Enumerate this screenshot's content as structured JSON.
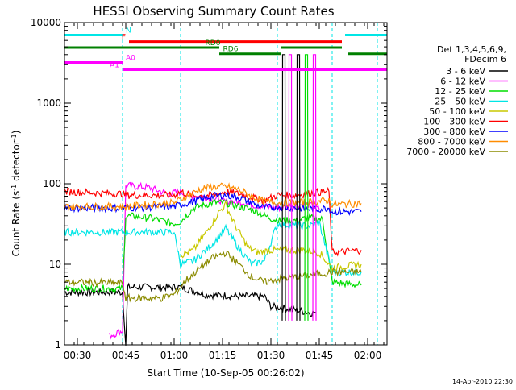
{
  "chart_data": {
    "type": "line",
    "title": "HESSI Observing Summary Count Rates",
    "xlabel": "Start Time (10-Sep-05 00:26:02)",
    "ylabel": "Count Rate (s⁻¹ detector⁻¹)",
    "ylabel_main": "Count Rate (s",
    "ylabel_sup1": "-1",
    "ylabel_mid": " detector",
    "ylabel_sup2": "-1",
    "ylabel_end": ")",
    "x_unit": "minutes after 00:26:02",
    "xlim": [
      0,
      100
    ],
    "ylim": [
      1,
      10000
    ],
    "yscale": "log",
    "grid": false,
    "x_ticks": [
      {
        "x": 4,
        "label": "00:30"
      },
      {
        "x": 19,
        "label": "00:45"
      },
      {
        "x": 34,
        "label": "01:00"
      },
      {
        "x": 49,
        "label": "01:15"
      },
      {
        "x": 64,
        "label": "01:30"
      },
      {
        "x": 79,
        "label": "01:45"
      },
      {
        "x": 94,
        "label": "02:00"
      }
    ],
    "y_ticks": [
      {
        "y": 1,
        "label": "1"
      },
      {
        "y": 10,
        "label": "10"
      },
      {
        "y": 100,
        "label": "100"
      },
      {
        "y": 1000,
        "label": "1000"
      },
      {
        "y": 10000,
        "label": "10000"
      }
    ],
    "legend": {
      "placement": "right",
      "title_line1": "Det 1,3,4,5,6,9,",
      "title_line2": "FDecim 6",
      "entries": [
        {
          "label": "3 - 6 keV",
          "color": "#000000"
        },
        {
          "label": "6 - 12 keV",
          "color": "#ff00ff"
        },
        {
          "label": "12 - 25 keV",
          "color": "#00dd00"
        },
        {
          "label": "25 - 50 keV",
          "color": "#00e6e6"
        },
        {
          "label": "50 - 100 keV",
          "color": "#c8c800"
        },
        {
          "label": "100 - 300 keV",
          "color": "#ff0000"
        },
        {
          "label": "300 - 800 keV",
          "color": "#0000ff"
        },
        {
          "label": "800 - 7000 keV",
          "color": "#ff8c00"
        },
        {
          "label": "7000 - 20000 keV",
          "color": "#8b8b00"
        }
      ]
    },
    "series": [
      {
        "label": "3 - 6 keV",
        "color": "#000000",
        "points": [
          [
            0,
            4.5
          ],
          [
            18,
            4.5
          ],
          [
            19,
            1
          ],
          [
            19.6,
            5.2
          ],
          [
            36,
            5.2
          ],
          [
            44,
            4.2
          ],
          [
            55,
            4.0
          ],
          [
            62,
            4.0
          ],
          [
            64,
            3
          ],
          [
            70,
            2.8
          ],
          [
            76,
            2.5
          ],
          [
            78,
            2.5
          ]
        ]
      },
      {
        "label": "6 - 12 keV",
        "color": "#ff00ff",
        "points": [
          [
            14,
            1.3
          ],
          [
            18,
            1.5
          ],
          [
            19,
            95
          ],
          [
            26,
            90
          ],
          [
            32,
            75
          ],
          [
            36,
            80
          ],
          [
            38,
            72
          ],
          [
            44,
            68
          ],
          [
            50,
            60
          ],
          [
            54,
            60
          ],
          [
            58,
            55
          ],
          [
            62,
            52
          ],
          [
            66,
            50
          ],
          [
            72,
            55
          ],
          [
            76,
            55
          ],
          [
            79,
            48
          ]
        ]
      },
      {
        "label": "12 - 25 keV",
        "color": "#00dd00",
        "points": [
          [
            0,
            5
          ],
          [
            18,
            5
          ],
          [
            19,
            40
          ],
          [
            26,
            38
          ],
          [
            34,
            32
          ],
          [
            36,
            34
          ],
          [
            40,
            50
          ],
          [
            46,
            58
          ],
          [
            50,
            58
          ],
          [
            56,
            50
          ],
          [
            60,
            45
          ],
          [
            62,
            40
          ],
          [
            66,
            35
          ],
          [
            72,
            35
          ],
          [
            76,
            38
          ],
          [
            80,
            36
          ],
          [
            83,
            6
          ],
          [
            92,
            5.5
          ]
        ]
      },
      {
        "label": "25 - 50 keV",
        "color": "#00e6e6",
        "points": [
          [
            0,
            25
          ],
          [
            18,
            25
          ],
          [
            19,
            25
          ],
          [
            34,
            25
          ],
          [
            36,
            10
          ],
          [
            40,
            11
          ],
          [
            46,
            18
          ],
          [
            50,
            28
          ],
          [
            54,
            16
          ],
          [
            58,
            10
          ],
          [
            62,
            11
          ],
          [
            66,
            32
          ],
          [
            72,
            30
          ],
          [
            76,
            30
          ],
          [
            79,
            33
          ],
          [
            83,
            8
          ],
          [
            92,
            8
          ]
        ]
      },
      {
        "label": "50 - 100 keV",
        "color": "#c8c800",
        "points": [
          [
            36,
            13
          ],
          [
            40,
            15
          ],
          [
            44,
            25
          ],
          [
            48,
            45
          ],
          [
            50,
            55
          ],
          [
            53,
            30
          ],
          [
            57,
            16
          ],
          [
            60,
            14
          ],
          [
            64,
            15
          ],
          [
            74,
            15
          ],
          [
            79,
            14
          ],
          [
            83,
            9
          ],
          [
            92,
            10
          ]
        ]
      },
      {
        "label": "100 - 300 keV",
        "color": "#ff0000",
        "points": [
          [
            0,
            80
          ],
          [
            18,
            75
          ],
          [
            19,
            72
          ],
          [
            34,
            72
          ],
          [
            36,
            80
          ],
          [
            40,
            70
          ],
          [
            46,
            72
          ],
          [
            50,
            80
          ],
          [
            54,
            75
          ],
          [
            58,
            68
          ],
          [
            62,
            62
          ],
          [
            66,
            72
          ],
          [
            72,
            72
          ],
          [
            78,
            78
          ],
          [
            82,
            80
          ],
          [
            83,
            14
          ],
          [
            92,
            15
          ]
        ]
      },
      {
        "label": "300 - 800 keV",
        "color": "#0000ff",
        "points": [
          [
            0,
            50
          ],
          [
            18,
            50
          ],
          [
            34,
            52
          ],
          [
            36,
            55
          ],
          [
            40,
            60
          ],
          [
            46,
            70
          ],
          [
            50,
            72
          ],
          [
            54,
            68
          ],
          [
            58,
            58
          ],
          [
            62,
            50
          ],
          [
            66,
            52
          ],
          [
            72,
            50
          ],
          [
            78,
            48
          ],
          [
            82,
            50
          ],
          [
            83,
            45
          ],
          [
            92,
            45
          ]
        ]
      },
      {
        "label": "800 - 7000 keV",
        "color": "#ff8c00",
        "points": [
          [
            0,
            52
          ],
          [
            18,
            52
          ],
          [
            34,
            58
          ],
          [
            38,
            70
          ],
          [
            42,
            85
          ],
          [
            46,
            92
          ],
          [
            50,
            92
          ],
          [
            54,
            85
          ],
          [
            58,
            70
          ],
          [
            62,
            60
          ],
          [
            66,
            58
          ],
          [
            72,
            58
          ],
          [
            78,
            60
          ],
          [
            82,
            62
          ],
          [
            83,
            55
          ],
          [
            92,
            57
          ]
        ]
      },
      {
        "label": "7000 - 20000 keV",
        "color": "#8b8b00",
        "points": [
          [
            0,
            6
          ],
          [
            18,
            5.8
          ],
          [
            19,
            3.8
          ],
          [
            30,
            3.8
          ],
          [
            34,
            4.2
          ],
          [
            38,
            6.5
          ],
          [
            42,
            9
          ],
          [
            46,
            12
          ],
          [
            50,
            14
          ],
          [
            54,
            10
          ],
          [
            58,
            7
          ],
          [
            62,
            6
          ],
          [
            66,
            6.5
          ],
          [
            72,
            7
          ],
          [
            78,
            7.5
          ],
          [
            83,
            8
          ],
          [
            92,
            8
          ]
        ]
      }
    ],
    "flag_bars": [
      {
        "label": "N",
        "color": "#00e6e6",
        "y": 7000,
        "segments": [
          [
            0,
            18
          ],
          [
            87,
            100
          ]
        ]
      },
      {
        "label": "F",
        "color": "#ff0000",
        "y": 5800,
        "segments": [
          [
            20,
            86
          ]
        ]
      },
      {
        "label": "RD0",
        "color": "#008000",
        "y": 4900,
        "segments": [
          [
            0,
            48
          ],
          [
            67,
            86
          ]
        ]
      },
      {
        "label": "RD6",
        "color": "#008000",
        "y": 4100,
        "segments": [
          [
            48,
            67
          ],
          [
            88,
            100
          ]
        ]
      },
      {
        "label": "A0",
        "color": "#ff00ff",
        "y": 3200,
        "segments": [
          [
            0,
            18
          ]
        ]
      },
      {
        "label": "A1",
        "color": "#ff00ff",
        "y": 2600,
        "segments": [
          [
            18,
            100
          ]
        ]
      }
    ],
    "verticals": [
      {
        "x": 18,
        "color": "#00e6e6"
      },
      {
        "x": 36,
        "color": "#00e6e6"
      },
      {
        "x": 66,
        "color": "#00e6e6"
      },
      {
        "x": 83,
        "color": "#00e6e6"
      },
      {
        "x": 97,
        "color": "#00e6e6"
      }
    ],
    "attenuator_spikes": [
      {
        "x": 68,
        "top": 4000,
        "bottom": 2,
        "color": "#000000"
      },
      {
        "x": 70,
        "top": 4000,
        "bottom": 2,
        "color": "#ff00ff"
      },
      {
        "x": 72.5,
        "top": 4000,
        "bottom": 2,
        "color": "#000000"
      },
      {
        "x": 75,
        "top": 4000,
        "bottom": 2,
        "color": "#00dd00"
      },
      {
        "x": 77.5,
        "top": 4000,
        "bottom": 2,
        "color": "#ff00ff"
      }
    ],
    "timestamp": "14-Apr-2010 22:30"
  }
}
